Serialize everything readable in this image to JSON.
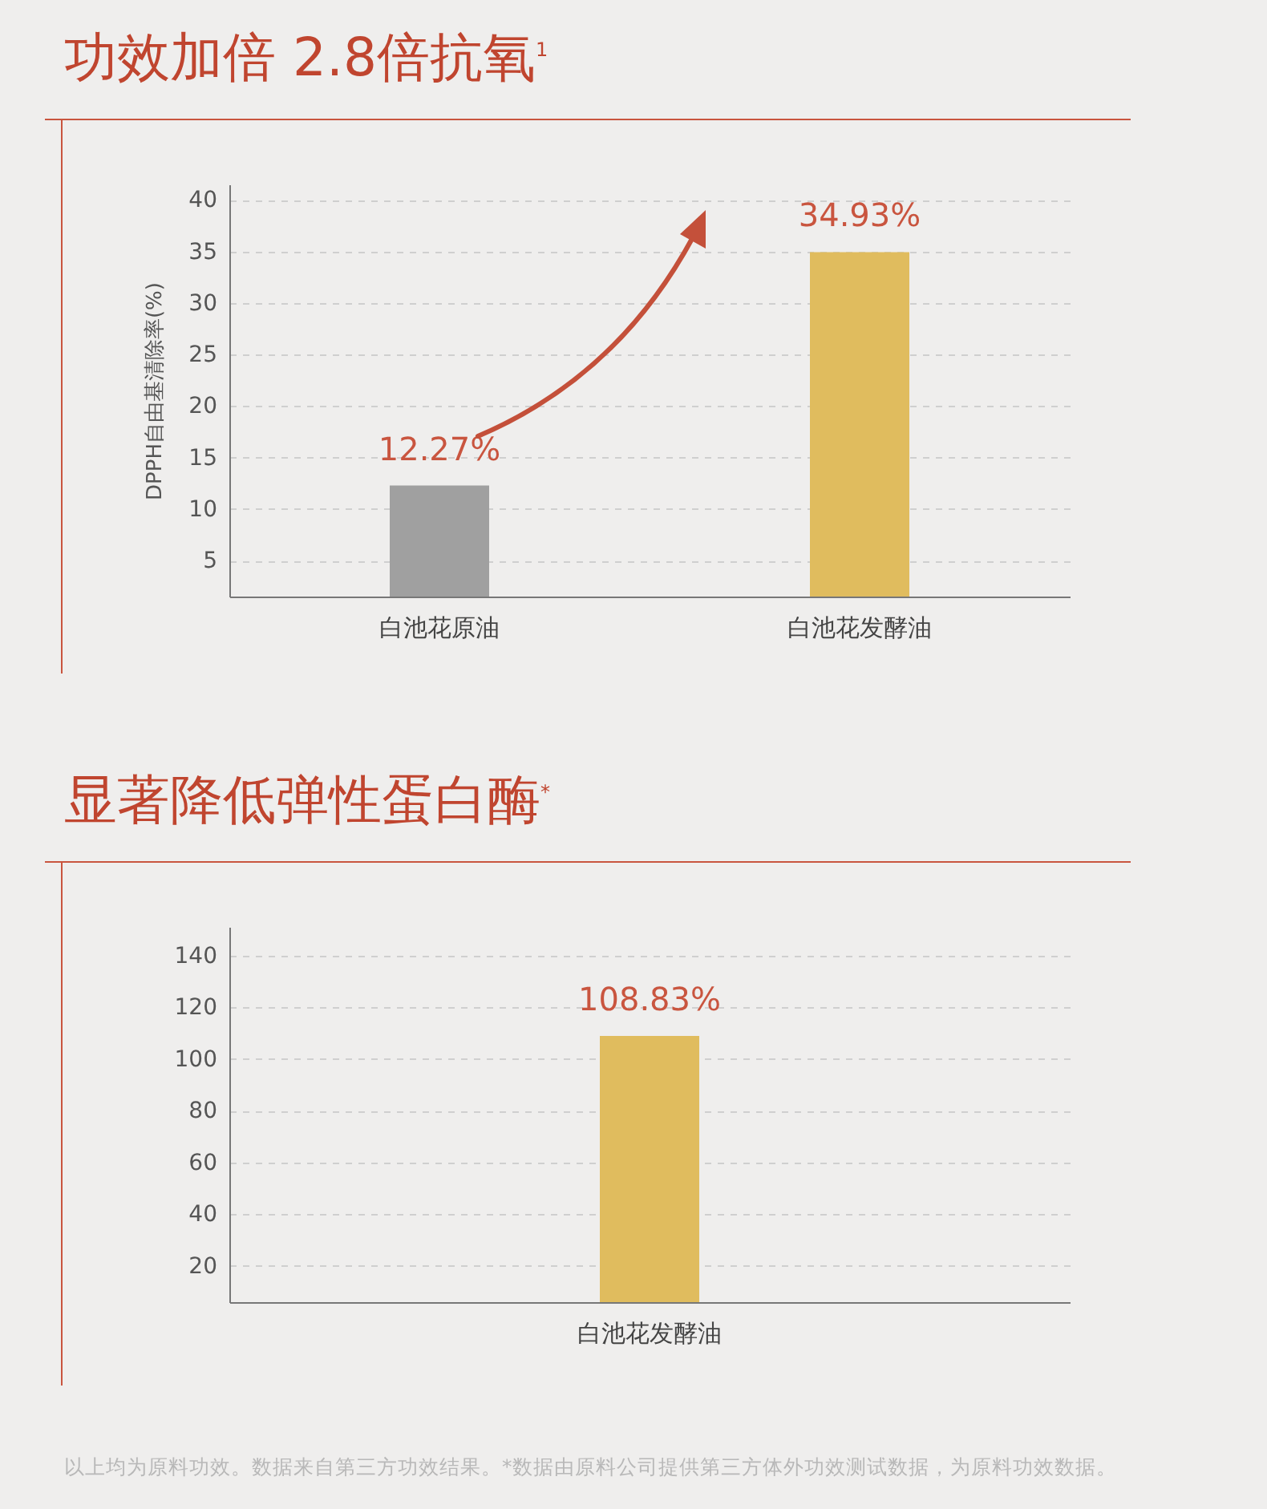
{
  "chart_data": [
    {
      "type": "bar",
      "title": "功效加倍 2.8倍抗氧$^{1}$",
      "ylabel": "DPPH自由基清除率(%)",
      "categories": [
        "白池花原油",
        "白池花发酵油"
      ],
      "values": [
        12.27,
        34.93
      ],
      "colors": [
        "#a0a0a0",
        "#e0bc5e"
      ],
      "value_labels": [
        "12.27%",
        "34.93%"
      ],
      "ylim": [
        1.5,
        41.5
      ],
      "yticks": [
        5,
        10,
        15,
        20,
        25,
        30,
        35,
        40
      ],
      "grid": "y"
    },
    {
      "type": "bar",
      "title": "显著降低弹性蛋白酶$^{*}$",
      "categories": [
        "白池花发酵油"
      ],
      "values": [
        108.83
      ],
      "colors": [
        "#e0bc5e"
      ],
      "value_labels": [
        "108.83%"
      ],
      "ylim": [
        6,
        151
      ],
      "yticks": [
        20,
        40,
        60,
        80,
        100,
        120,
        140
      ],
      "grid": "y",
      "annotations": [
        "以上均为原料功效。数据来自第三方功效结果。*数据由原料公司提供第三方体外功效测试数据，为原料功效数据。"
      ]
    }
  ]
}
